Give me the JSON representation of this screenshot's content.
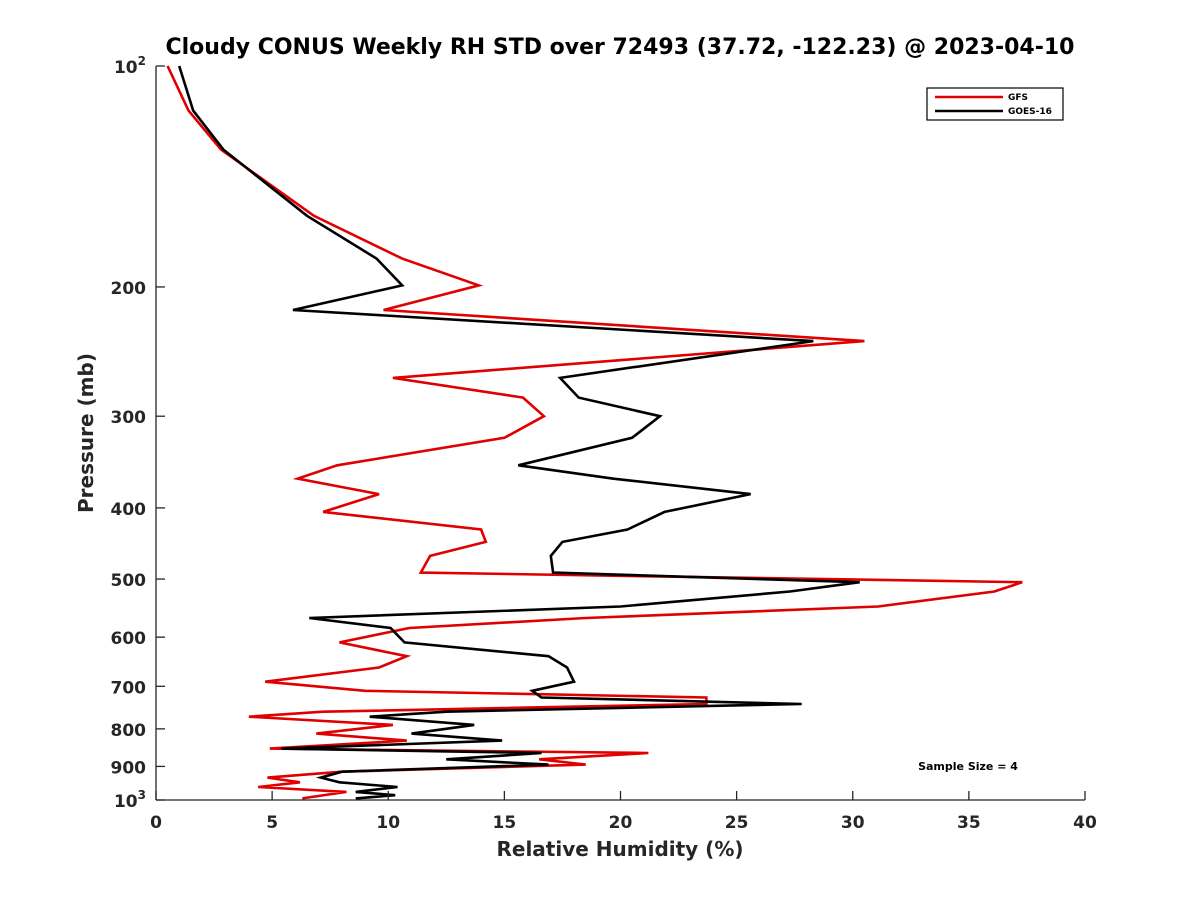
{
  "chart_data": {
    "type": "line",
    "title": "Cloudy CONUS Weekly RH STD over 72493 (37.72, -122.23) @ 2023-04-10",
    "xlabel": "Relative Humidity (%)",
    "ylabel": "Pressure (mb)",
    "xlim": [
      0,
      40
    ],
    "ylim": [
      100,
      1000
    ],
    "y_scale": "log",
    "y_reversed": true,
    "grid": false,
    "legend_position": "top-right",
    "x_ticks": [
      "0",
      "5",
      "10",
      "15",
      "20",
      "25",
      "30",
      "35",
      "40"
    ],
    "y_ticks": [
      {
        "value": 100,
        "base": "10",
        "sup": "2"
      },
      {
        "value": 200,
        "label": "200"
      },
      {
        "value": 300,
        "label": "300"
      },
      {
        "value": 400,
        "label": "400"
      },
      {
        "value": 500,
        "label": "500"
      },
      {
        "value": 600,
        "label": "600"
      },
      {
        "value": 700,
        "label": "700"
      },
      {
        "value": 800,
        "label": "800"
      },
      {
        "value": 900,
        "label": "900"
      },
      {
        "value": 1000,
        "base": "10",
        "sup": "3"
      }
    ],
    "annotation": "Sample Size = 4",
    "series": [
      {
        "name": "GFS",
        "color": "#e00000",
        "points": [
          [
            0.5,
            100
          ],
          [
            1.4,
            115
          ],
          [
            2.8,
            130
          ],
          [
            6.8,
            160
          ],
          [
            10.6,
            183
          ],
          [
            13.9,
            199
          ],
          [
            9.8,
            215
          ],
          [
            30.5,
            237
          ],
          [
            10.2,
            266
          ],
          [
            15.8,
            283
          ],
          [
            16.7,
            300
          ],
          [
            15.0,
            321
          ],
          [
            7.8,
            350
          ],
          [
            6.1,
            365
          ],
          [
            9.6,
            383
          ],
          [
            7.2,
            405
          ],
          [
            14.0,
            428
          ],
          [
            14.2,
            445
          ],
          [
            11.8,
            465
          ],
          [
            11.4,
            490
          ],
          [
            37.3,
            505
          ],
          [
            36.1,
            520
          ],
          [
            31.1,
            545
          ],
          [
            18.5,
            565
          ],
          [
            10.9,
            583
          ],
          [
            7.9,
            610
          ],
          [
            10.8,
            637
          ],
          [
            9.6,
            660
          ],
          [
            4.7,
            690
          ],
          [
            9.0,
            710
          ],
          [
            23.7,
            725
          ],
          [
            23.7,
            740
          ],
          [
            7.2,
            758
          ],
          [
            4.0,
            770
          ],
          [
            10.2,
            790
          ],
          [
            6.9,
            812
          ],
          [
            10.8,
            830
          ],
          [
            4.9,
            851
          ],
          [
            21.2,
            863
          ],
          [
            16.5,
            880
          ],
          [
            18.5,
            895
          ],
          [
            8.0,
            915
          ],
          [
            4.8,
            932
          ],
          [
            6.2,
            946
          ],
          [
            4.4,
            960
          ],
          [
            8.2,
            975
          ],
          [
            6.3,
            995
          ]
        ]
      },
      {
        "name": "GOES-16",
        "color": "#000000",
        "points": [
          [
            1.0,
            100
          ],
          [
            1.6,
            115
          ],
          [
            2.9,
            130
          ],
          [
            6.5,
            160
          ],
          [
            9.5,
            183
          ],
          [
            10.6,
            199
          ],
          [
            5.9,
            215
          ],
          [
            28.3,
            237
          ],
          [
            17.4,
            266
          ],
          [
            18.2,
            283
          ],
          [
            21.7,
            300
          ],
          [
            20.5,
            321
          ],
          [
            15.6,
            350
          ],
          [
            19.7,
            365
          ],
          [
            25.6,
            383
          ],
          [
            21.9,
            405
          ],
          [
            20.3,
            428
          ],
          [
            17.5,
            445
          ],
          [
            17.0,
            465
          ],
          [
            17.1,
            490
          ],
          [
            30.3,
            505
          ],
          [
            27.3,
            520
          ],
          [
            20.0,
            545
          ],
          [
            6.6,
            565
          ],
          [
            10.1,
            583
          ],
          [
            10.7,
            610
          ],
          [
            16.9,
            637
          ],
          [
            17.7,
            660
          ],
          [
            18.0,
            690
          ],
          [
            16.2,
            710
          ],
          [
            16.6,
            725
          ],
          [
            27.8,
            740
          ],
          [
            12.5,
            758
          ],
          [
            9.2,
            770
          ],
          [
            13.7,
            790
          ],
          [
            11.0,
            812
          ],
          [
            14.9,
            830
          ],
          [
            5.4,
            851
          ],
          [
            16.6,
            863
          ],
          [
            12.5,
            880
          ],
          [
            16.9,
            895
          ],
          [
            8.0,
            915
          ],
          [
            7.1,
            932
          ],
          [
            7.9,
            946
          ],
          [
            10.4,
            960
          ],
          [
            8.6,
            975
          ],
          [
            10.3,
            985
          ],
          [
            8.6,
            995
          ]
        ]
      }
    ]
  }
}
